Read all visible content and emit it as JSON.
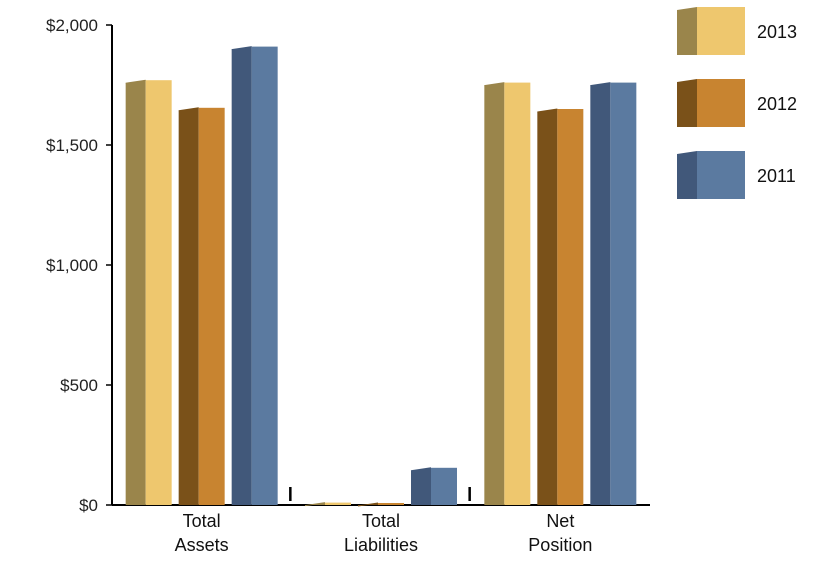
{
  "chart_data": {
    "type": "bar",
    "categories": [
      [
        "Total",
        "Assets"
      ],
      [
        "Total",
        "Liabilities"
      ],
      [
        "Net",
        "Position"
      ]
    ],
    "series": [
      {
        "name": "2013",
        "values": [
          1770,
          10,
          1760
        ],
        "color": "#EEC76E",
        "dark_color": "#9A854B"
      },
      {
        "name": "2012",
        "values": [
          1655,
          8,
          1650
        ],
        "color": "#C88430",
        "dark_color": "#7A5119"
      },
      {
        "name": "2011",
        "values": [
          1910,
          155,
          1760
        ],
        "color": "#5B7AA0",
        "dark_color": "#41587A"
      }
    ],
    "y_ticks": [
      0,
      500,
      1000,
      1500,
      2000
    ],
    "y_tick_labels": [
      "$0",
      "$500",
      "$1,000",
      "$1,500",
      "$2,000"
    ],
    "ylim": [
      0,
      2000
    ],
    "legend_position": "right",
    "grid": false
  }
}
